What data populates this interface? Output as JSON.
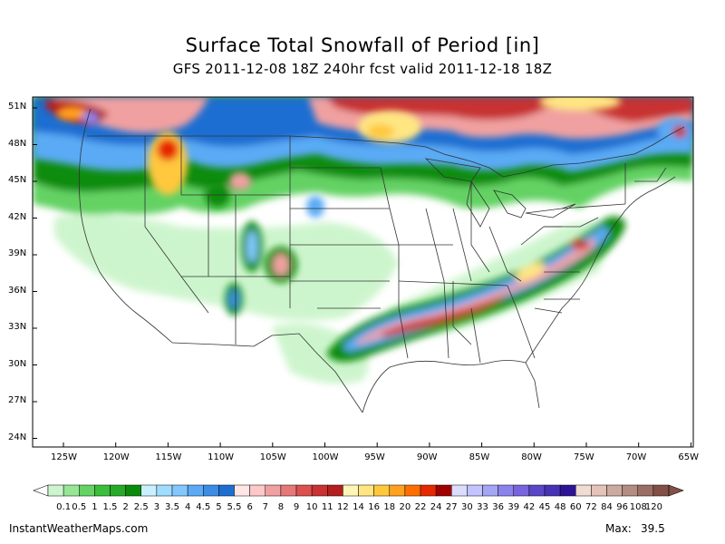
{
  "title": "Surface Total Snowfall of Period [in]",
  "subtitle": "GFS 2011-12-08 18Z 240hr fcst valid 2011-12-18 18Z",
  "map": {
    "lat_labels": [
      "51N",
      "48N",
      "45N",
      "42N",
      "39N",
      "36N",
      "33N",
      "30N",
      "27N",
      "24N"
    ],
    "lon_labels": [
      "125W",
      "120W",
      "115W",
      "110W",
      "105W",
      "100W",
      "95W",
      "90W",
      "85W",
      "80W",
      "75W",
      "70W",
      "65W"
    ]
  },
  "legend": {
    "labels": [
      "0.1",
      "0.5",
      "1",
      "1.5",
      "2",
      "2.5",
      "3",
      "3.5",
      "4",
      "4.5",
      "5",
      "5.5",
      "6",
      "7",
      "8",
      "9",
      "10",
      "11",
      "12",
      "14",
      "16",
      "18",
      "20",
      "22",
      "24",
      "27",
      "30",
      "33",
      "36",
      "39",
      "42",
      "45",
      "48",
      "60",
      "72",
      "84",
      "96",
      "108",
      "120"
    ],
    "colors": [
      "#cdf5cd",
      "#96e696",
      "#64d264",
      "#3cbe3c",
      "#28aa28",
      "#0a8c0a",
      "#c8f0ff",
      "#a0dcff",
      "#82c8ff",
      "#5aaaf5",
      "#3c8ce6",
      "#1e6ed2",
      "#ffe6e6",
      "#ffc8c8",
      "#f0a0a0",
      "#e67878",
      "#dc5050",
      "#c83232",
      "#b41e1e",
      "#fff5b4",
      "#ffe682",
      "#ffc83c",
      "#ffa01e",
      "#ff6e00",
      "#e62800",
      "#a00000",
      "#dcdcff",
      "#c3c3ff",
      "#a5a5f5",
      "#8c82eb",
      "#7864dc",
      "#5a46c8",
      "#4632b4",
      "#2d1496",
      "#f0dcd2",
      "#e6c3b9",
      "#cdaaa0",
      "#b48c82",
      "#9b6e64",
      "#825046"
    ]
  },
  "footer": {
    "credit": "InstantWeatherMaps.com",
    "max_label": "Max:",
    "max_value": "39.5"
  }
}
